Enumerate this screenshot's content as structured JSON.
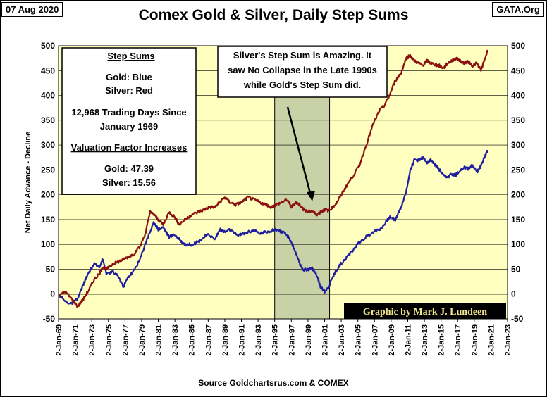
{
  "header": {
    "date": "07 Aug 2020",
    "source_tag": "GATA.Org",
    "title": "Comex Gold & Silver, Daily Step Sums"
  },
  "footer": {
    "source": "Source Goldchartsrus.com & COMEX"
  },
  "legend_box": {
    "heading": "Step Sums",
    "gold": "Gold: Blue",
    "silver": "Silver: Red",
    "days_line1": "12,968 Trading Days Since",
    "days_line2": "January 1969",
    "vf_heading": "Valuation Factor Increases",
    "vf_gold": "Gold:  47.39",
    "vf_silver": "Silver:  15.56"
  },
  "annotation": {
    "line1": "Silver's Step Sum is Amazing.  It",
    "line2": "saw No Collapse in the Late 1990s",
    "line3": "while Gold's Step Sum did."
  },
  "credit": "Graphic by Mark J. Lundeen",
  "colors": {
    "gold": "#1f1f9e",
    "silver": "#8b1010",
    "plot_bg": "#ffffc0",
    "shade": "#c9d2a6"
  },
  "chart_data": {
    "type": "line",
    "title": "Comex Gold & Silver, Daily Step Sums",
    "ylabel": "Net Daily Advance - Decline",
    "ylim": [
      -50,
      500
    ],
    "yticks": [
      -50,
      0,
      50,
      100,
      150,
      200,
      250,
      300,
      350,
      400,
      450,
      500
    ],
    "xlim": [
      1969,
      2023
    ],
    "xticks": [
      "2-Jan-69",
      "2-Jan-71",
      "2-Jan-73",
      "2-Jan-75",
      "2-Jan-77",
      "2-Jan-79",
      "2-Jan-81",
      "2-Jan-83",
      "2-Jan-85",
      "2-Jan-87",
      "2-Jan-89",
      "2-Jan-91",
      "2-Jan-93",
      "2-Jan-95",
      "2-Jan-97",
      "2-Jan-99",
      "2-Jan-01",
      "2-Jan-03",
      "2-Jan-05",
      "2-Jan-07",
      "2-Jan-09",
      "2-Jan-11",
      "2-Jan-13",
      "2-Jan-15",
      "2-Jan-17",
      "2-Jan-19",
      "2-Jan-21",
      "2-Jan-23"
    ],
    "shaded_range": [
      1995,
      2001.6
    ],
    "series": [
      {
        "name": "Gold",
        "color": "#1f1f9e",
        "x": [
          1969,
          1969.8,
          1970.6,
          1971.3,
          1972.0,
          1972.7,
          1973.3,
          1973.9,
          1974.3,
          1974.8,
          1975.5,
          1976.2,
          1976.8,
          1977.4,
          1978.0,
          1978.8,
          1979.5,
          1980.0,
          1980.5,
          1981.0,
          1981.6,
          1982.3,
          1983.0,
          1983.5,
          1984.2,
          1985.0,
          1985.8,
          1986.5,
          1987.1,
          1987.8,
          1988.4,
          1989.0,
          1989.6,
          1990.3,
          1991.0,
          1991.8,
          1992.5,
          1993.2,
          1993.9,
          1994.6,
          1995.2,
          1995.9,
          1996.5,
          1997.0,
          1997.5,
          1998.0,
          1998.5,
          1999.0,
          1999.5,
          2000.0,
          2000.5,
          2001.0,
          2001.5,
          2002.0,
          2002.5,
          2003.0,
          2003.7,
          2004.5,
          2005.2,
          2006.0,
          2006.8,
          2007.6,
          2008.2,
          2008.8,
          2009.5,
          2010.2,
          2010.8,
          2011.3,
          2011.8,
          2012.3,
          2012.8,
          2013.3,
          2013.8,
          2014.3,
          2014.8,
          2015.3,
          2015.8,
          2016.3,
          2016.8,
          2017.3,
          2017.8,
          2018.3,
          2018.8,
          2019.3,
          2019.8,
          2020.2,
          2020.6
        ],
        "y": [
          0,
          -15,
          -20,
          -10,
          20,
          45,
          60,
          55,
          70,
          40,
          45,
          35,
          15,
          35,
          45,
          70,
          105,
          125,
          145,
          130,
          135,
          115,
          120,
          110,
          100,
          100,
          105,
          115,
          120,
          110,
          130,
          125,
          130,
          120,
          120,
          125,
          128,
          122,
          125,
          128,
          130,
          125,
          118,
          105,
          85,
          60,
          48,
          50,
          52,
          40,
          15,
          5,
          15,
          35,
          50,
          62,
          75,
          90,
          105,
          115,
          125,
          130,
          140,
          155,
          150,
          175,
          205,
          250,
          270,
          270,
          275,
          265,
          270,
          260,
          250,
          238,
          235,
          242,
          240,
          250,
          255,
          252,
          260,
          245,
          258,
          275,
          290
        ]
      },
      {
        "name": "Silver",
        "color": "#8b1010",
        "x": [
          1969,
          1969.8,
          1970.6,
          1971.3,
          1972.0,
          1972.7,
          1973.3,
          1973.9,
          1974.3,
          1974.8,
          1975.5,
          1976.2,
          1976.8,
          1977.4,
          1978.0,
          1978.8,
          1979.5,
          1980.0,
          1980.5,
          1981.0,
          1981.6,
          1982.3,
          1983.0,
          1983.5,
          1984.2,
          1985.0,
          1985.8,
          1986.5,
          1987.1,
          1987.8,
          1988.4,
          1989.0,
          1989.6,
          1990.3,
          1991.0,
          1991.8,
          1992.5,
          1993.2,
          1993.9,
          1994.6,
          1995.2,
          1995.9,
          1996.5,
          1997.0,
          1997.5,
          1998.0,
          1998.5,
          1999.0,
          1999.5,
          2000.0,
          2000.5,
          2001.0,
          2001.5,
          2002.0,
          2002.5,
          2003.0,
          2003.7,
          2004.5,
          2005.2,
          2006.0,
          2006.8,
          2007.6,
          2008.2,
          2008.8,
          2009.5,
          2010.2,
          2010.8,
          2011.3,
          2011.8,
          2012.3,
          2012.8,
          2013.3,
          2013.8,
          2014.3,
          2014.8,
          2015.3,
          2015.8,
          2016.3,
          2016.8,
          2017.3,
          2017.8,
          2018.3,
          2018.8,
          2019.3,
          2019.8,
          2020.2,
          2020.6
        ],
        "y": [
          -5,
          5,
          -10,
          -25,
          -10,
          10,
          30,
          40,
          55,
          50,
          60,
          65,
          70,
          75,
          80,
          95,
          125,
          165,
          160,
          150,
          140,
          165,
          155,
          140,
          150,
          160,
          165,
          170,
          175,
          175,
          185,
          195,
          185,
          180,
          185,
          195,
          190,
          185,
          180,
          175,
          180,
          185,
          190,
          175,
          185,
          180,
          170,
          165,
          168,
          160,
          165,
          170,
          168,
          175,
          185,
          200,
          220,
          240,
          260,
          300,
          340,
          370,
          380,
          400,
          430,
          445,
          475,
          480,
          470,
          465,
          460,
          470,
          465,
          462,
          460,
          455,
          465,
          470,
          475,
          470,
          465,
          468,
          460,
          465,
          450,
          470,
          490
        ]
      }
    ]
  }
}
